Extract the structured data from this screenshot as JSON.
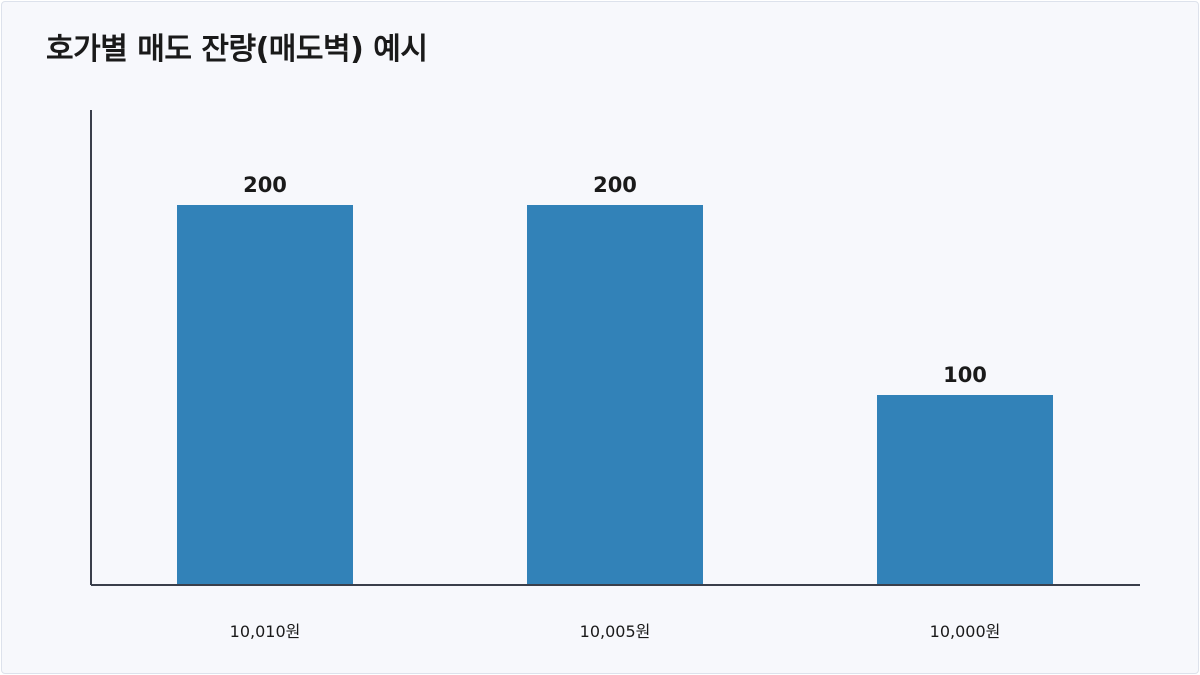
{
  "chart_data": {
    "type": "bar",
    "title": "호가별 매도 잔량(매도벽) 예시",
    "categories": [
      "10,010원",
      "10,005원",
      "10,000원"
    ],
    "values": [
      200,
      200,
      100
    ],
    "data_labels": [
      "200",
      "200",
      "100"
    ],
    "xlabel": "",
    "ylabel": "",
    "ylim": [
      0,
      250
    ],
    "grid": false,
    "legend": "none",
    "colors": {
      "bar": "#3282b8",
      "axis": "#3a3f4b",
      "background": "#f7f8fc",
      "text": "#1a1a1a"
    }
  }
}
